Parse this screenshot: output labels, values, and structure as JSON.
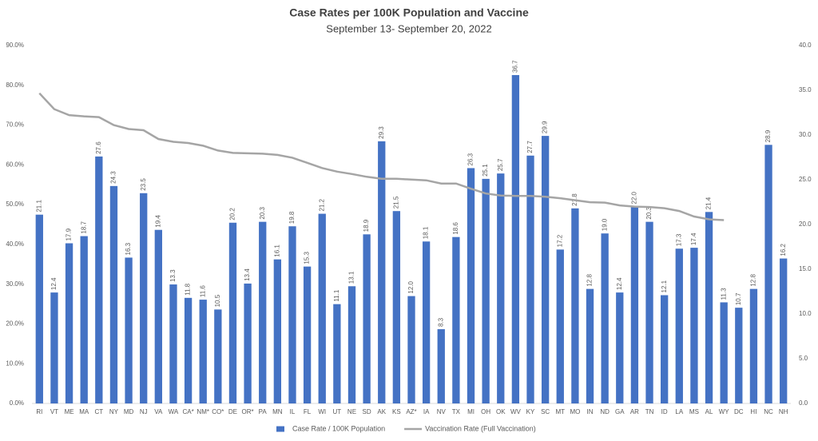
{
  "chart_data": {
    "type": "bar",
    "title": "Case Rates per 100K Population and Vaccine",
    "subtitle": "September 13- September 20, 2022",
    "categories": [
      "RI",
      "VT",
      "ME",
      "MA",
      "CT",
      "NY",
      "MD",
      "NJ",
      "VA",
      "WA",
      "CA*",
      "NM*",
      "CO*",
      "DE",
      "OR*",
      "PA",
      "MN",
      "IL",
      "FL",
      "WI",
      "UT",
      "NE",
      "SD",
      "AK",
      "KS",
      "AZ*",
      "IA",
      "NV",
      "TX",
      "MI",
      "OH",
      "OK",
      "WV",
      "KY",
      "SC",
      "MT",
      "MO",
      "IN",
      "ND",
      "GA",
      "AR",
      "TN",
      "ID",
      "LA",
      "MS",
      "AL",
      "WY",
      "DC",
      "HI",
      "NC",
      "NH"
    ],
    "series": [
      {
        "name": "Case Rate / 100K Population",
        "type": "bar",
        "axis": "y2",
        "color": "#4472c4",
        "values": [
          21.1,
          12.4,
          17.9,
          18.7,
          27.6,
          24.3,
          16.3,
          23.5,
          19.4,
          13.3,
          11.8,
          11.6,
          10.5,
          20.2,
          13.4,
          20.3,
          16.1,
          19.8,
          15.3,
          21.2,
          11.1,
          13.1,
          18.9,
          29.3,
          21.5,
          12.0,
          18.1,
          8.3,
          18.6,
          26.3,
          25.1,
          25.7,
          36.7,
          27.7,
          29.9,
          17.2,
          21.8,
          12.8,
          19.0,
          12.4,
          22.0,
          20.3,
          12.1,
          17.3,
          17.4,
          21.4,
          11.3,
          10.7,
          12.8,
          28.9,
          16.2
        ],
        "value_labels": [
          "21.1",
          "12.4",
          "17.9",
          "18.7",
          "27.6",
          "24.3",
          "16.3",
          "23.5",
          "19.4",
          "13.3",
          "11.8",
          "11.6",
          "10.5",
          "20.2",
          "13.4",
          "20.3",
          "16.1",
          "19.8",
          "15.3",
          "21.2",
          "11.1",
          "13.1",
          "18.9",
          "29.3",
          "21.5",
          "12.0",
          "18.1",
          "8.3",
          "18.6",
          "26.3",
          "25.1",
          "25.7",
          "36.7",
          "27.7",
          "29.9",
          "17.2",
          "21.8",
          "12.8",
          "19.0",
          "12.4",
          "22.0",
          "20.3",
          "12.1",
          "17.3",
          "17.4",
          "21.4",
          "11.3",
          "10.7",
          "12.8",
          "28.9",
          "16.2"
        ]
      },
      {
        "name": "Vaccination Rate (Full Vaccination)",
        "type": "line",
        "color": "#a5a5a5",
        "values": [
          78,
          74,
          72.5,
          72.2,
          72,
          70,
          69,
          68.7,
          66.5,
          65.8,
          65.5,
          64.8,
          63.6,
          63,
          62.9,
          62.8,
          62.5,
          61.8,
          60.5,
          59.2,
          58.3,
          57.7,
          57,
          56.5,
          56.5,
          56.3,
          56.1,
          55.3,
          55.3,
          54,
          52.8,
          52.3,
          52.2,
          52.2,
          52,
          51.6,
          51.1,
          50.6,
          50.5,
          49.8,
          49.5,
          49.4,
          49.1,
          48.4,
          47,
          46.3,
          46.1,
          null,
          null,
          null,
          null
        ]
      }
    ],
    "ylim": [
      0,
      90
    ],
    "yticks": [
      {
        "value": 0,
        "label": "0.0%"
      },
      {
        "value": 10,
        "label": "10.0%"
      },
      {
        "value": 20,
        "label": "20.0%"
      },
      {
        "value": 30,
        "label": "30.0%"
      },
      {
        "value": 40,
        "label": "40.0%"
      },
      {
        "value": 50,
        "label": "50.0%"
      },
      {
        "value": 60,
        "label": "60.0%"
      },
      {
        "value": 70,
        "label": "70.0%"
      },
      {
        "value": 80,
        "label": "80.0%"
      },
      {
        "value": 90,
        "label": "90.0%"
      }
    ],
    "y2lim": [
      0,
      40
    ],
    "y2ticks": [
      {
        "value": 0,
        "label": "0.0"
      },
      {
        "value": 5,
        "label": "5.0"
      },
      {
        "value": 10,
        "label": "10.0"
      },
      {
        "value": 15,
        "label": "15.0"
      },
      {
        "value": 20,
        "label": "20.0"
      },
      {
        "value": 25,
        "label": "25.0"
      },
      {
        "value": 30,
        "label": "30.0"
      },
      {
        "value": 35,
        "label": "35.0"
      },
      {
        "value": 40,
        "label": "40.0"
      }
    ],
    "legend": "bottom"
  }
}
